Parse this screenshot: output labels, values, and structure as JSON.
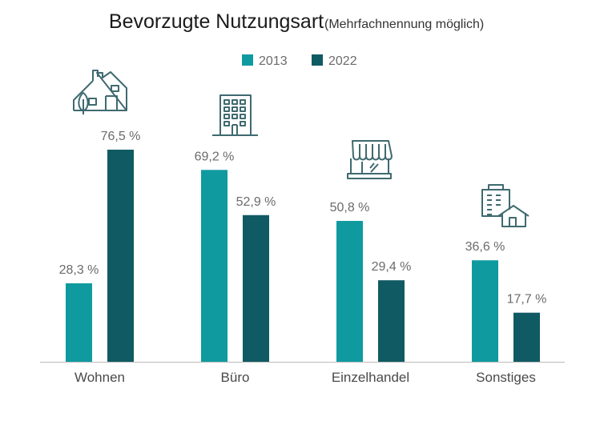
{
  "chart_data": {
    "type": "bar",
    "title": "Bevorzugte Nutzungsart",
    "subtitle": "(Mehrfachnennung möglich)",
    "categories": [
      "Wohnen",
      "Büro",
      "Einzelhandel",
      "Sonstiges"
    ],
    "category_icons": [
      "house-with-tree-icon",
      "office-building-icon",
      "shop-storefront-icon",
      "building-with-house-icon"
    ],
    "series": [
      {
        "name": "2013",
        "color": "#0f9aa0",
        "values": [
          28.3,
          69.2,
          50.8,
          36.6
        ],
        "labels": [
          "28,3 %",
          "69,2 %",
          "50,8 %",
          "36,6 %"
        ]
      },
      {
        "name": "2022",
        "color": "#105a63",
        "values": [
          76.5,
          52.9,
          29.4,
          17.7
        ],
        "labels": [
          "76,5 %",
          "52,9 %",
          "29,4 %",
          "17,7 %"
        ]
      }
    ],
    "ylim": [
      0,
      100
    ],
    "unit": "%",
    "grid": false,
    "legend_position": "top-center"
  }
}
